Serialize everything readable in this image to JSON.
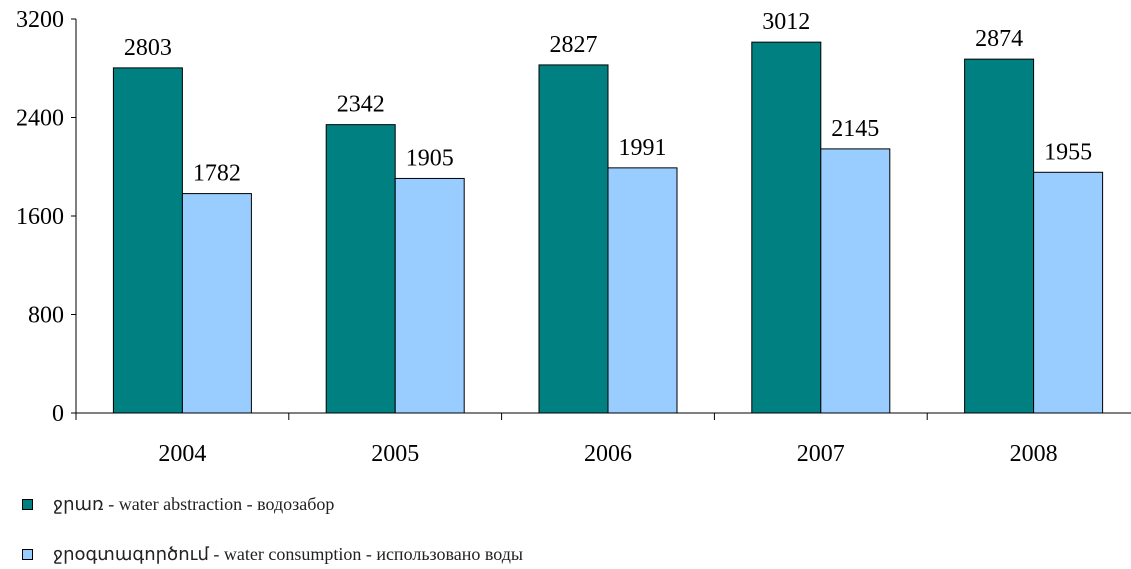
{
  "chart_data": {
    "type": "bar",
    "categories": [
      "2004",
      "2005",
      "2006",
      "2007",
      "2008"
    ],
    "series": [
      {
        "name": "ջրառ - water abstraction - водозабор",
        "color": "#008080",
        "values": [
          2803,
          2342,
          2827,
          3012,
          2874
        ]
      },
      {
        "name": "ջրօգտագործում - water consumption - использовано воды",
        "color": "#99ccff",
        "values": [
          1782,
          1905,
          1991,
          2145,
          1955
        ]
      }
    ],
    "yticks": [
      "0",
      "800",
      "1600",
      "2400",
      "3200"
    ],
    "ylim": [
      0,
      3200
    ],
    "title": "",
    "xlabel": "",
    "ylabel": "",
    "grid": false,
    "legend_position": "bottom-left"
  }
}
